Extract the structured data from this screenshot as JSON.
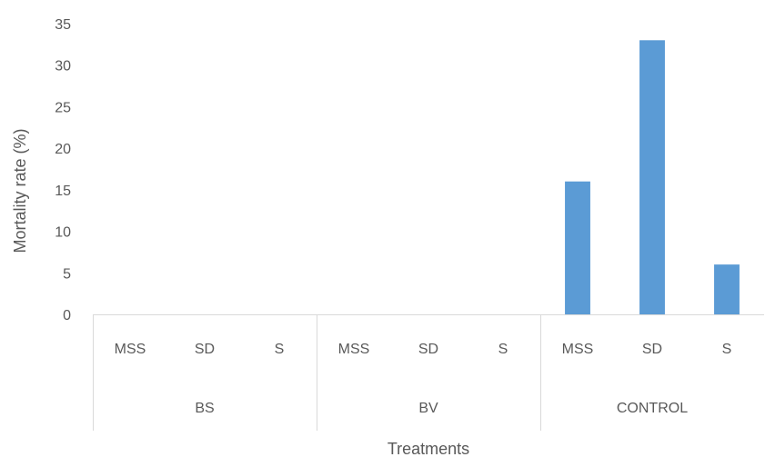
{
  "chart_data": {
    "type": "bar",
    "ylabel": "Mortality rate (%)",
    "xlabel": "Treatments",
    "ylim": [
      0,
      35
    ],
    "yticks": [
      0,
      5,
      10,
      15,
      20,
      25,
      30,
      35
    ],
    "grid": false,
    "groups": [
      {
        "name": "BS",
        "categories": [
          "MSS",
          "SD",
          "S"
        ],
        "values": [
          0,
          0,
          0
        ]
      },
      {
        "name": "BV",
        "categories": [
          "MSS",
          "SD",
          "S"
        ],
        "values": [
          0,
          0,
          0
        ]
      },
      {
        "name": "CONTROL",
        "categories": [
          "MSS",
          "SD",
          "S"
        ],
        "values": [
          16,
          33,
          6
        ]
      }
    ],
    "bar_color": "#5b9bd5"
  }
}
